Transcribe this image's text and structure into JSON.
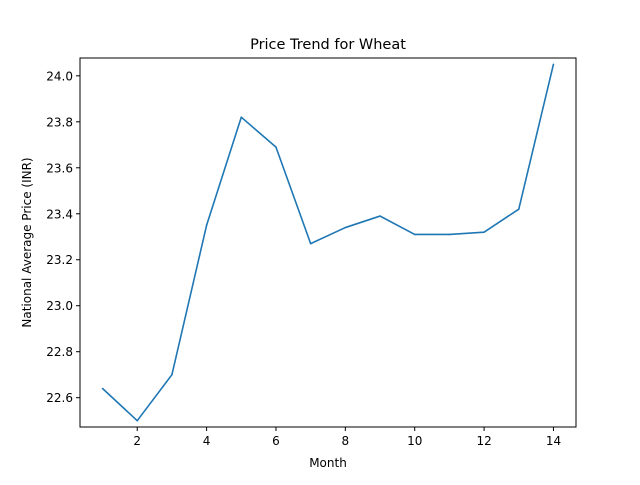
{
  "chart_data": {
    "type": "line",
    "title": "Price Trend for Wheat",
    "xlabel": "Month",
    "ylabel": "National Average Price (INR)",
    "xlim": [
      0.35,
      14.65
    ],
    "ylim": [
      22.4725,
      24.0775
    ],
    "xticks": [
      2,
      4,
      6,
      8,
      10,
      12,
      14
    ],
    "xtick_labels": [
      "2",
      "4",
      "6",
      "8",
      "10",
      "12",
      "14"
    ],
    "yticks": [
      22.6,
      22.8,
      23.0,
      23.2,
      23.4,
      23.6,
      23.8,
      24.0
    ],
    "ytick_labels": [
      "22.6",
      "22.8",
      "23.0",
      "23.2",
      "23.4",
      "23.6",
      "23.8",
      "24.0"
    ],
    "grid": false,
    "series": [
      {
        "color": "#1f77b4",
        "x": [
          1,
          2,
          3,
          4,
          5,
          6,
          7,
          8,
          9,
          10,
          11,
          12,
          13,
          14
        ],
        "values": [
          22.64,
          22.5,
          22.7,
          23.35,
          23.82,
          23.69,
          23.27,
          23.34,
          23.39,
          23.31,
          23.31,
          23.32,
          23.42,
          24.05
        ]
      }
    ]
  }
}
